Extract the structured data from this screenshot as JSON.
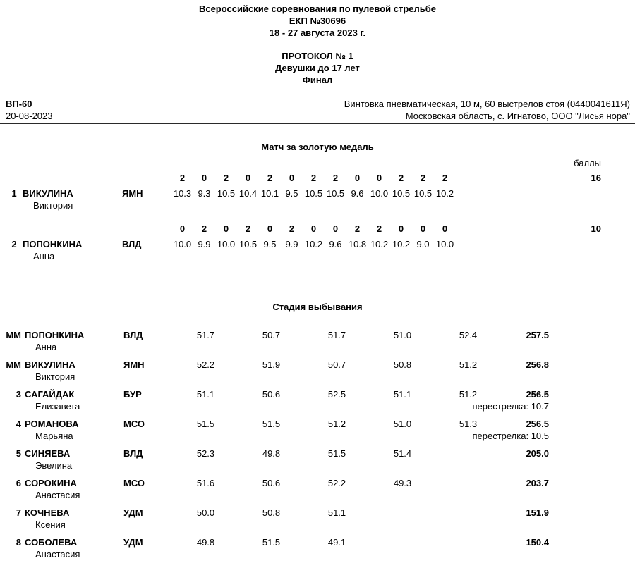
{
  "header": {
    "line1": "Всероссийские соревнования по пулевой стрельбе",
    "line2": "ЕКП №30696",
    "line3": "18 - 27 августа 2023 г.",
    "protocol": "ПРОТОКОЛ № 1",
    "category": "Девушки до 17 лет",
    "stage": "Финал"
  },
  "info": {
    "event_code": "ВП-60",
    "date": "20-08-2023",
    "discipline": "Винтовка пневматическая, 10 м, 60 выстрелов стоя (0440041611Я)",
    "venue": "Московская область, с. Игнатово, ООО \"Лисья нора\""
  },
  "gold_medal_match": {
    "title": "Матч за золотую медаль",
    "points_header": "баллы",
    "athletes": [
      {
        "rank": "1",
        "surname": "ВИКУЛИНА",
        "firstname": "Виктория",
        "region": "ЯМН",
        "points": [
          "2",
          "0",
          "2",
          "0",
          "2",
          "0",
          "2",
          "2",
          "0",
          "0",
          "2",
          "2",
          "2"
        ],
        "shots": [
          "10.3",
          "9.3",
          "10.5",
          "10.4",
          "10.1",
          "9.5",
          "10.5",
          "10.5",
          "9.6",
          "10.0",
          "10.5",
          "10.5",
          "10.2"
        ],
        "total_points": "16"
      },
      {
        "rank": "2",
        "surname": "ПОПОНКИНА",
        "firstname": "Анна",
        "region": "ВЛД",
        "points": [
          "0",
          "2",
          "0",
          "2",
          "0",
          "2",
          "0",
          "0",
          "2",
          "2",
          "0",
          "0",
          "0"
        ],
        "shots": [
          "10.0",
          "9.9",
          "10.0",
          "10.5",
          "9.5",
          "9.9",
          "10.2",
          "9.6",
          "10.8",
          "10.2",
          "10.2",
          "9.0",
          "10.0"
        ],
        "total_points": "10"
      }
    ]
  },
  "elimination": {
    "title": "Стадия выбывания",
    "rows": [
      {
        "rank": "ММ",
        "surname": "ПОПОНКИНА",
        "firstname": "Анна",
        "region": "ВЛД",
        "series": [
          "51.7",
          "50.7",
          "51.7",
          "51.0",
          "52.4"
        ],
        "total": "257.5",
        "shootoff": ""
      },
      {
        "rank": "ММ",
        "surname": "ВИКУЛИНА",
        "firstname": "Виктория",
        "region": "ЯМН",
        "series": [
          "52.2",
          "51.9",
          "50.7",
          "50.8",
          "51.2"
        ],
        "total": "256.8",
        "shootoff": ""
      },
      {
        "rank": "3",
        "surname": "САГАЙДАК",
        "firstname": "Елизавета",
        "region": "БУР",
        "series": [
          "51.1",
          "50.6",
          "52.5",
          "51.1",
          "51.2"
        ],
        "total": "256.5",
        "shootoff": "перестрелка: 10.7"
      },
      {
        "rank": "4",
        "surname": "РОМАНОВА",
        "firstname": "Марьяна",
        "region": "МСО",
        "series": [
          "51.5",
          "51.5",
          "51.2",
          "51.0",
          "51.3"
        ],
        "total": "256.5",
        "shootoff": "перестрелка: 10.5"
      },
      {
        "rank": "5",
        "surname": "СИНЯЕВА",
        "firstname": "Эвелина",
        "region": "ВЛД",
        "series": [
          "52.3",
          "49.8",
          "51.5",
          "51.4"
        ],
        "total": "205.0",
        "shootoff": ""
      },
      {
        "rank": "6",
        "surname": "СОРОКИНА",
        "firstname": "Анастасия",
        "region": "МСО",
        "series": [
          "51.6",
          "50.6",
          "52.2",
          "49.3"
        ],
        "total": "203.7",
        "shootoff": ""
      },
      {
        "rank": "7",
        "surname": "КОЧНЕВА",
        "firstname": "Ксения",
        "region": "УДМ",
        "series": [
          "50.0",
          "50.8",
          "51.1"
        ],
        "total": "151.9",
        "shootoff": ""
      },
      {
        "rank": "8",
        "surname": "СОБОЛЕВА",
        "firstname": "Анастасия",
        "region": "УДМ",
        "series": [
          "49.8",
          "51.5",
          "49.1"
        ],
        "total": "150.4",
        "shootoff": ""
      }
    ]
  }
}
